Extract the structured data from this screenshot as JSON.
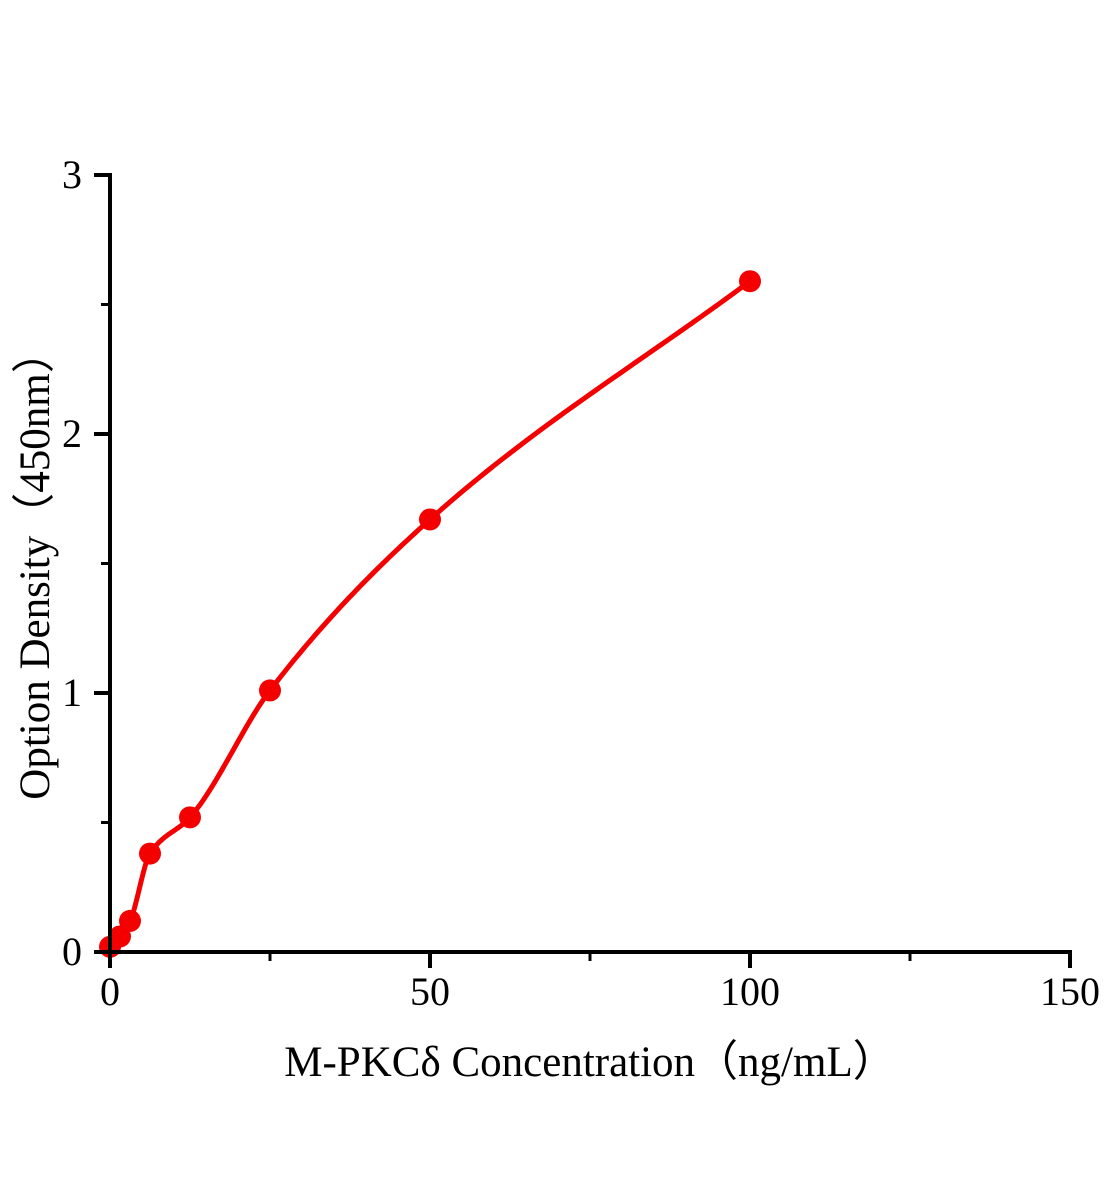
{
  "page": {
    "background": "#ffffff"
  },
  "chart_data": {
    "type": "line",
    "title": "",
    "xlabel": "M-PKCδ Concentration（ng/mL）",
    "ylabel": "Option Density（450nm）",
    "x": [
      0,
      1.563,
      3.125,
      6.25,
      12.5,
      25,
      50,
      100
    ],
    "values": [
      0.02,
      0.06,
      0.12,
      0.38,
      0.52,
      1.01,
      1.67,
      2.59
    ],
    "xlim": [
      0,
      150
    ],
    "ylim": [
      0,
      3
    ],
    "x_major_ticks": [
      0,
      50,
      100,
      150
    ],
    "x_minor_ticks": [
      25,
      75,
      125
    ],
    "y_major_ticks": [
      0,
      1,
      2,
      3
    ],
    "y_minor_ticks": [
      0.5,
      1.5,
      2.5
    ],
    "grid": false,
    "legend_position": "none",
    "marker": "filled-circle",
    "curve": "smooth-fit",
    "colors": {
      "line": "#f40000",
      "marker": "#f40000",
      "axis": "#000000",
      "text": "#000000"
    }
  }
}
